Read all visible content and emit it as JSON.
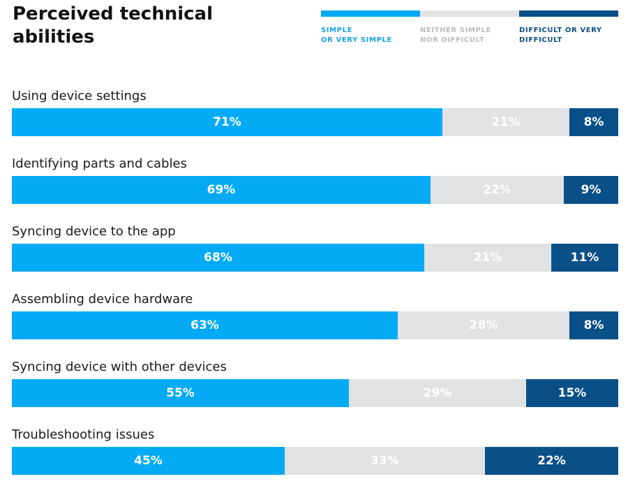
{
  "chart_data": {
    "type": "bar",
    "orientation": "horizontal",
    "stacked": true,
    "title": "Perceived technical abilities",
    "legend_position": "top-right",
    "categories": [
      "Using device settings",
      "Identifying parts and cables",
      "Syncing device to the app",
      "Assembling device hardware",
      "Syncing device with other devices",
      "Troubleshooting issues"
    ],
    "series": [
      {
        "name": "SIMPLE\nOR VERY SIMPLE",
        "color": "#05aaf5",
        "label_color": "#ffffff",
        "values": [
          71,
          69,
          68,
          63,
          55,
          45
        ]
      },
      {
        "name": "NEITHER SIMPLE\nNOR DIFFICULT",
        "color": "#e1e2e4",
        "label_color": "#ffffff",
        "values": [
          21,
          22,
          21,
          28,
          29,
          33
        ]
      },
      {
        "name": "DIFFICULT OR VERY\nDIFFICULT",
        "color": "#095088",
        "label_color": "#ffffff",
        "values": [
          8,
          9,
          11,
          8,
          15,
          22
        ]
      }
    ],
    "legend_text_colors": [
      "#1ca0e6",
      "#b9bcc0",
      "#0b4f86"
    ],
    "value_suffix": "%",
    "xlim": [
      0,
      100
    ],
    "grid": false
  }
}
